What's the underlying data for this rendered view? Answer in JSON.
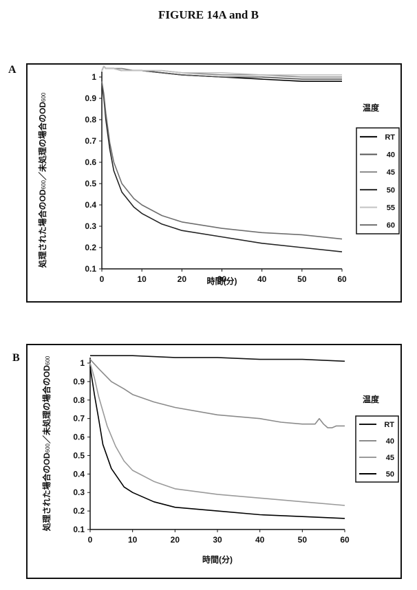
{
  "figure_title": "FIGURE 14A and B",
  "panels": [
    {
      "letter": "A"
    },
    {
      "letter": "B"
    }
  ],
  "chart_data": [
    {
      "type": "line",
      "panel": "A",
      "title": "",
      "xlabel": "時間(分)",
      "ylabel_main": "処理された場合のOD",
      "ylabel_sub1": "600",
      "ylabel_mid": "／未処理の場合のOD",
      "ylabel_sub2": "600",
      "xlim": [
        0,
        60
      ],
      "ylim": [
        0.1,
        1.05
      ],
      "x_ticks": [
        "0",
        "10",
        "20",
        "30",
        "40",
        "50",
        "60"
      ],
      "y_ticks": [
        "1",
        "0.9",
        "0.8",
        "0.7",
        "0.6",
        "0.5",
        "0.4",
        "0.3",
        "0.2",
        "0.1"
      ],
      "legend_title": "温度",
      "legend_position": "right",
      "grid": false,
      "series": [
        {
          "name": "RT",
          "color": "#000000",
          "x": [
            0,
            0.5,
            1,
            2,
            3,
            5,
            8,
            10,
            15,
            20,
            30,
            40,
            50,
            60
          ],
          "y": [
            1.03,
            1.05,
            1.04,
            1.04,
            1.04,
            1.03,
            1.03,
            1.03,
            1.02,
            1.01,
            1.0,
            0.99,
            0.98,
            0.98
          ]
        },
        {
          "name": "40",
          "color": "#555555",
          "x": [
            0,
            0.5,
            1,
            2,
            3,
            5,
            8,
            10,
            15,
            20,
            30,
            40,
            50,
            60
          ],
          "y": [
            1.03,
            1.05,
            1.04,
            1.04,
            1.04,
            1.03,
            1.03,
            1.03,
            1.02,
            1.01,
            1.0,
            1.0,
            0.99,
            0.99
          ]
        },
        {
          "name": "45",
          "color": "#8a8a8a",
          "x": [
            0,
            0.5,
            1,
            2,
            3,
            5,
            8,
            10,
            15,
            20,
            30,
            40,
            50,
            60
          ],
          "y": [
            1.03,
            1.05,
            1.04,
            1.04,
            1.04,
            1.04,
            1.03,
            1.03,
            1.03,
            1.02,
            1.01,
            1.01,
            1.0,
            1.0
          ]
        },
        {
          "name": "50",
          "color": "#222222",
          "x": [
            0,
            0.5,
            1,
            2,
            3,
            5,
            8,
            10,
            15,
            20,
            30,
            40,
            50,
            60
          ],
          "y": [
            0.97,
            0.9,
            0.8,
            0.66,
            0.56,
            0.46,
            0.39,
            0.36,
            0.31,
            0.28,
            0.25,
            0.22,
            0.2,
            0.18
          ]
        },
        {
          "name": "55",
          "color": "#c2c2c2",
          "x": [
            0,
            0.5,
            1,
            2,
            3,
            5,
            8,
            10,
            15,
            20,
            30,
            40,
            50,
            60
          ],
          "y": [
            1.03,
            1.05,
            1.04,
            1.04,
            1.04,
            1.03,
            1.03,
            1.03,
            1.03,
            1.02,
            1.02,
            1.01,
            1.01,
            1.01
          ]
        },
        {
          "name": "60",
          "color": "#6e6e6e",
          "x": [
            0,
            0.5,
            1,
            2,
            3,
            5,
            8,
            10,
            15,
            20,
            30,
            40,
            50,
            60
          ],
          "y": [
            0.98,
            0.92,
            0.83,
            0.69,
            0.6,
            0.5,
            0.43,
            0.4,
            0.35,
            0.32,
            0.29,
            0.27,
            0.26,
            0.24
          ]
        }
      ]
    },
    {
      "type": "line",
      "panel": "B",
      "title": "",
      "xlabel": "時間(分)",
      "ylabel_main": "処理された場合のOD",
      "ylabel_sub1": "600",
      "ylabel_mid": "／未処理の場合のOD",
      "ylabel_sub2": "600",
      "xlim": [
        0,
        60
      ],
      "ylim": [
        0.1,
        1.05
      ],
      "x_ticks": [
        "0",
        "10",
        "20",
        "30",
        "40",
        "50",
        "60"
      ],
      "y_ticks": [
        "1",
        "0.9",
        "0.8",
        "0.7",
        "0.6",
        "0.5",
        "0.4",
        "0.3",
        "0.2",
        "0.1"
      ],
      "legend_title": "温度",
      "legend_position": "right",
      "grid": false,
      "series": [
        {
          "name": "RT",
          "color": "#111111",
          "x": [
            0,
            2,
            5,
            10,
            20,
            30,
            40,
            50,
            60
          ],
          "y": [
            1.04,
            1.04,
            1.04,
            1.04,
            1.03,
            1.03,
            1.02,
            1.02,
            1.01
          ]
        },
        {
          "name": "40",
          "color": "#8a8a8a",
          "x": [
            0,
            2,
            5,
            8,
            10,
            15,
            20,
            30,
            40,
            45,
            50,
            53,
            54,
            55,
            56,
            57,
            58,
            60
          ],
          "y": [
            1.02,
            0.97,
            0.9,
            0.86,
            0.83,
            0.79,
            0.76,
            0.72,
            0.7,
            0.68,
            0.67,
            0.67,
            0.7,
            0.67,
            0.65,
            0.65,
            0.66,
            0.66
          ]
        },
        {
          "name": "45",
          "color": "#9a9a9a",
          "x": [
            0,
            1,
            2,
            4,
            6,
            8,
            10,
            15,
            20,
            30,
            40,
            50,
            60
          ],
          "y": [
            1.0,
            0.92,
            0.82,
            0.66,
            0.55,
            0.47,
            0.42,
            0.36,
            0.32,
            0.29,
            0.27,
            0.25,
            0.23
          ]
        },
        {
          "name": "50",
          "color": "#000000",
          "x": [
            0,
            1,
            2,
            3,
            5,
            8,
            10,
            15,
            20,
            30,
            40,
            50,
            60
          ],
          "y": [
            0.98,
            0.83,
            0.7,
            0.56,
            0.43,
            0.33,
            0.3,
            0.25,
            0.22,
            0.2,
            0.18,
            0.17,
            0.16
          ]
        }
      ]
    }
  ]
}
